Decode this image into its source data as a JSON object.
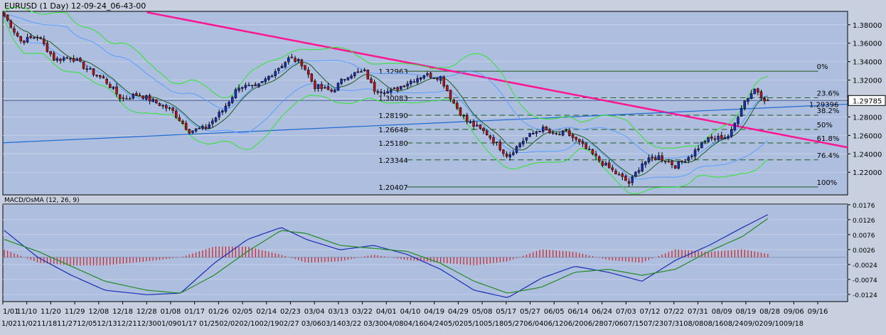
{
  "window": {
    "title": "EURUSD (1 Day) 12-09-24_06-43-00"
  },
  "colors": {
    "panel_bg": "#aebedf",
    "outer_bg": "#c8d0e0",
    "candle_up": "#1a2eb4",
    "candle_down": "#b41414",
    "wick": "#000000",
    "bollinger": "#2ee62e",
    "ma_blue": "#5aa0ff",
    "ma_dark": "#1e5a1e",
    "trend_magenta": "#ff1493",
    "trend_blue": "#1e6ad0",
    "fib_line": "#1e5a1e",
    "macd_line": "#1a2eb4",
    "signal_line": "#228b22",
    "hist_bar": "#d21e1e"
  },
  "chart_data": [
    {
      "type": "candlestick",
      "title": "EURUSD (1 Day) 12-09-24_06-43-00",
      "ylim": [
        1.1955,
        1.3945
      ],
      "y_ticks": [
        "1.38000",
        "1.36000",
        "1.34000",
        "1.32000",
        "1.30000",
        "1.28000",
        "1.26000",
        "1.24000",
        "1.22000"
      ],
      "current_price": "1.29785",
      "x_ticks_top": [
        "1/01",
        "11/10",
        "11/20",
        "11/29",
        "12/08",
        "12/18",
        "12/28",
        "01/08",
        "01/17",
        "01/26",
        "02/05",
        "02/14",
        "02/23",
        "03/04",
        "03/13",
        "03/22",
        "04/01",
        "04/10",
        "04/19",
        "04/29",
        "05/08",
        "05/17",
        "05/27",
        "06/05",
        "06/14",
        "06/24",
        "07/03",
        "07/12",
        "07/22",
        "07/31",
        "08/09",
        "08/19",
        "08/28",
        "09/06",
        "09/16"
      ],
      "x_ticks_bottom": "1/0211/0211/1811/2712/0512/1312/2112/3001/0901/17 01/2502/0202/1002/1902/27 03/0603/1403/22 03/3004/0804/1604/2405/0205/1005/1805/2706/0406/1206/2006/2807/0607/1507/2307/3108/0808/1608/2409/0209/1009/18",
      "fibonacci": [
        {
          "level": "0%",
          "price": 1.32963,
          "label": "1.32963"
        },
        {
          "level": "23.6%",
          "price": 1.30083,
          "label": "1.30083"
        },
        {
          "level": "38.2%",
          "price": 1.2819,
          "label": "1.28190"
        },
        {
          "level": "50%",
          "price": 1.26648,
          "label": "1.26648"
        },
        {
          "level": "61.8%",
          "price": 1.2518,
          "label": "1.25180"
        },
        {
          "level": "76.4%",
          "price": 1.23344,
          "label": "1.23344"
        },
        {
          "level": "100%",
          "price": 1.20407,
          "label": "1.20407"
        }
      ],
      "trendline_label": "1.29396",
      "trendlines": [
        {
          "name": "down",
          "color": "#ff1493",
          "from": [
            0,
            1.3935
          ],
          "to": [
            1,
            1.247
          ]
        },
        {
          "name": "up",
          "color": "#1e6ad0",
          "from": [
            0,
            1.252
          ],
          "to": [
            1,
            1.2939
          ]
        }
      ],
      "close_anchors": [
        [
          0,
          1.39
        ],
        [
          0.02,
          1.362
        ],
        [
          0.04,
          1.368
        ],
        [
          0.06,
          1.342
        ],
        [
          0.08,
          1.345
        ],
        [
          0.1,
          1.331
        ],
        [
          0.12,
          1.32
        ],
        [
          0.14,
          1.299
        ],
        [
          0.16,
          1.305
        ],
        [
          0.18,
          1.296
        ],
        [
          0.2,
          1.287
        ],
        [
          0.22,
          1.265
        ],
        [
          0.24,
          1.268
        ],
        [
          0.26,
          1.287
        ],
        [
          0.28,
          1.314
        ],
        [
          0.3,
          1.311
        ],
        [
          0.32,
          1.328
        ],
        [
          0.34,
          1.344
        ],
        [
          0.355,
          1.338
        ],
        [
          0.37,
          1.313
        ],
        [
          0.39,
          1.308
        ],
        [
          0.41,
          1.326
        ],
        [
          0.43,
          1.329
        ],
        [
          0.44,
          1.31
        ],
        [
          0.46,
          1.307
        ],
        [
          0.48,
          1.317
        ],
        [
          0.5,
          1.326
        ],
        [
          0.52,
          1.323
        ],
        [
          0.535,
          1.296
        ],
        [
          0.55,
          1.276
        ],
        [
          0.575,
          1.262
        ],
        [
          0.6,
          1.238
        ],
        [
          0.62,
          1.256
        ],
        [
          0.64,
          1.268
        ],
        [
          0.655,
          1.26
        ],
        [
          0.67,
          1.263
        ],
        [
          0.69,
          1.248
        ],
        [
          0.71,
          1.232
        ],
        [
          0.73,
          1.218
        ],
        [
          0.745,
          1.208
        ],
        [
          0.76,
          1.23
        ],
        [
          0.78,
          1.237
        ],
        [
          0.8,
          1.227
        ],
        [
          0.82,
          1.24
        ],
        [
          0.835,
          1.255
        ],
        [
          0.85,
          1.257
        ],
        [
          0.865,
          1.26
        ],
        [
          0.88,
          1.295
        ],
        [
          0.895,
          1.311
        ],
        [
          0.91,
          1.296
        ]
      ]
    },
    {
      "type": "line",
      "title": "MACD/OsMA (12, 26, 9)",
      "ylim": [
        -0.0148,
        0.0178
      ],
      "y_ticks": [
        "0.0176",
        "0.0126",
        "0.0076",
        "0.0026",
        "-0.0024",
        "-0.0074",
        "-0.0124"
      ],
      "zero_line": 0.0,
      "series": [
        {
          "color": "#1a2eb4",
          "anchors": [
            [
              0,
              0.009
            ],
            [
              0.04,
              0.0
            ],
            [
              0.08,
              -0.006
            ],
            [
              0.12,
              -0.011
            ],
            [
              0.17,
              -0.0125
            ],
            [
              0.21,
              -0.012
            ],
            [
              0.25,
              -0.002
            ],
            [
              0.29,
              0.006
            ],
            [
              0.33,
              0.01
            ],
            [
              0.36,
              0.006
            ],
            [
              0.4,
              0.0025
            ],
            [
              0.44,
              0.004
            ],
            [
              0.48,
              0.001
            ],
            [
              0.52,
              -0.004
            ],
            [
              0.56,
              -0.011
            ],
            [
              0.6,
              -0.0135
            ],
            [
              0.64,
              -0.007
            ],
            [
              0.68,
              -0.003
            ],
            [
              0.72,
              -0.005
            ],
            [
              0.76,
              -0.008
            ],
            [
              0.8,
              -0.001
            ],
            [
              0.84,
              0.004
            ],
            [
              0.88,
              0.01
            ],
            [
              0.915,
              0.015
            ]
          ]
        },
        {
          "color": "#228b22",
          "anchors": [
            [
              0,
              0.006
            ],
            [
              0.04,
              0.002
            ],
            [
              0.08,
              -0.003
            ],
            [
              0.12,
              -0.008
            ],
            [
              0.17,
              -0.011
            ],
            [
              0.21,
              -0.012
            ],
            [
              0.25,
              -0.006
            ],
            [
              0.29,
              0.002
            ],
            [
              0.33,
              0.009
            ],
            [
              0.36,
              0.008
            ],
            [
              0.4,
              0.004
            ],
            [
              0.44,
              0.003
            ],
            [
              0.48,
              0.002
            ],
            [
              0.52,
              -0.002
            ],
            [
              0.56,
              -0.008
            ],
            [
              0.6,
              -0.012
            ],
            [
              0.64,
              -0.01
            ],
            [
              0.68,
              -0.005
            ],
            [
              0.72,
              -0.004
            ],
            [
              0.76,
              -0.006
            ],
            [
              0.8,
              -0.004
            ],
            [
              0.84,
              0.002
            ],
            [
              0.88,
              0.007
            ],
            [
              0.915,
              0.014
            ]
          ]
        }
      ]
    }
  ]
}
